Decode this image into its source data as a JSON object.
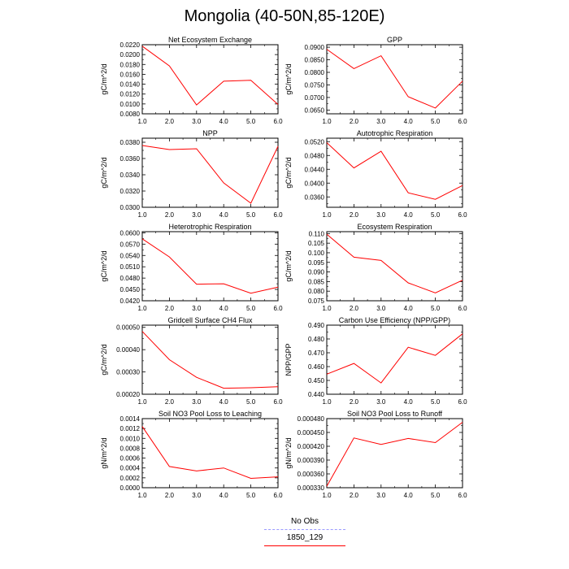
{
  "page": {
    "title": "Mongolia (40-50N,85-120E)"
  },
  "legend": {
    "obs_label": "No Obs",
    "model_label": "1850_129",
    "obs_color": "#9999ff",
    "model_color": "#ff0000"
  },
  "chart_data": [
    {
      "type": "line",
      "title": "Net Ecosystem Exchange",
      "ylabel": "gC/m^2/d",
      "x": [
        1,
        2,
        3,
        4,
        5,
        6
      ],
      "values": [
        0.0217,
        0.0177,
        0.0098,
        0.0146,
        0.0148,
        0.0099
      ],
      "ylim": [
        0.008,
        0.022
      ],
      "yticks": [
        0.008,
        0.01,
        0.012,
        0.014,
        0.016,
        0.018,
        0.02,
        0.022
      ],
      "ydec": 4,
      "xticks": [
        1,
        2,
        3,
        4,
        5,
        6
      ],
      "xlim": [
        1,
        6
      ],
      "color": "#ff0000"
    },
    {
      "type": "line",
      "title": "GPP",
      "ylabel": "gC/m^2/d",
      "x": [
        1,
        2,
        3,
        4,
        5,
        6
      ],
      "values": [
        0.0892,
        0.0815,
        0.0866,
        0.0703,
        0.0658,
        0.0765
      ],
      "ylim": [
        0.0635,
        0.091
      ],
      "yticks": [
        0.065,
        0.07,
        0.075,
        0.08,
        0.085,
        0.09
      ],
      "ydec": 4,
      "xticks": [
        1,
        2,
        3,
        4,
        5,
        6
      ],
      "xlim": [
        1,
        6
      ],
      "color": "#ff0000"
    },
    {
      "type": "line",
      "title": "NPP",
      "ylabel": "gC/m^2/d",
      "x": [
        1,
        2,
        3,
        4,
        5,
        6
      ],
      "values": [
        0.0376,
        0.0371,
        0.0372,
        0.033,
        0.0305,
        0.0375
      ],
      "ylim": [
        0.03,
        0.0385
      ],
      "yticks": [
        0.03,
        0.032,
        0.034,
        0.036,
        0.038
      ],
      "ydec": 4,
      "xticks": [
        1,
        2,
        3,
        4,
        5,
        6
      ],
      "xlim": [
        1,
        6
      ],
      "color": "#ff0000"
    },
    {
      "type": "line",
      "title": "Autotrophic Respiration",
      "ylabel": "gC/m^2/d",
      "x": [
        1,
        2,
        3,
        4,
        5,
        6
      ],
      "values": [
        0.0517,
        0.0444,
        0.0492,
        0.0372,
        0.0353,
        0.0393
      ],
      "ylim": [
        0.033,
        0.053
      ],
      "yticks": [
        0.036,
        0.04,
        0.044,
        0.048,
        0.052
      ],
      "ydec": 4,
      "xticks": [
        1,
        2,
        3,
        4,
        5,
        6
      ],
      "xlim": [
        1,
        6
      ],
      "color": "#ff0000"
    },
    {
      "type": "line",
      "title": "Heterotrophic Respiration",
      "ylabel": "gC/m^2/d",
      "x": [
        1,
        2,
        3,
        4,
        5,
        6
      ],
      "values": [
        0.0584,
        0.0536,
        0.0464,
        0.0465,
        0.044,
        0.0456
      ],
      "ylim": [
        0.042,
        0.0603
      ],
      "yticks": [
        0.042,
        0.045,
        0.048,
        0.051,
        0.054,
        0.057,
        0.06
      ],
      "ydec": 4,
      "xticks": [
        1,
        2,
        3,
        4,
        5,
        6
      ],
      "xlim": [
        1,
        6
      ],
      "color": "#ff0000"
    },
    {
      "type": "line",
      "title": "Ecosystem Respiration",
      "ylabel": "gC/m^2/d",
      "x": [
        1,
        2,
        3,
        4,
        5,
        6
      ],
      "values": [
        0.1097,
        0.0977,
        0.096,
        0.0843,
        0.0791,
        0.0857
      ],
      "ylim": [
        0.075,
        0.111
      ],
      "yticks": [
        0.075,
        0.08,
        0.085,
        0.09,
        0.095,
        0.1,
        0.105,
        0.11
      ],
      "ydec": 3,
      "xticks": [
        1,
        2,
        3,
        4,
        5,
        6
      ],
      "xlim": [
        1,
        6
      ],
      "color": "#ff0000"
    },
    {
      "type": "line",
      "title": "Gridcell Surface CH4 Flux",
      "ylabel": "gC/m^2/d",
      "x": [
        1,
        2,
        3,
        4,
        5,
        6
      ],
      "values": [
        0.000482,
        0.000355,
        0.000276,
        0.000227,
        0.000229,
        0.000234
      ],
      "ylim": [
        0.0002,
        0.00051
      ],
      "yticks": [
        0.0002,
        0.0003,
        0.0004,
        0.0005
      ],
      "ydec": 5,
      "xticks": [
        1,
        2,
        3,
        4,
        5,
        6
      ],
      "xlim": [
        1,
        6
      ],
      "color": "#ff0000"
    },
    {
      "type": "line",
      "title": "Carbon Use Efficiency (NPP/GPP)",
      "ylabel": "NPP/GPP",
      "x": [
        1,
        2,
        3,
        4,
        5,
        6
      ],
      "values": [
        0.4545,
        0.4623,
        0.4482,
        0.474,
        0.4681,
        0.4837
      ],
      "ylim": [
        0.44,
        0.49
      ],
      "yticks": [
        0.44,
        0.45,
        0.46,
        0.47,
        0.48,
        0.49
      ],
      "ydec": 3,
      "xticks": [
        1,
        2,
        3,
        4,
        5,
        6
      ],
      "xlim": [
        1,
        6
      ],
      "color": "#ff0000"
    },
    {
      "type": "line",
      "title": "Soil NO3 Pool Loss to Leaching",
      "ylabel": "gN/m^2/d",
      "x": [
        1,
        2,
        3,
        4,
        5,
        6
      ],
      "values": [
        0.00124,
        0.00043,
        0.00034,
        0.0004,
        0.00019,
        0.00022
      ],
      "ylim": [
        0,
        0.0014
      ],
      "yticks": [
        0.0,
        0.0002,
        0.0004,
        0.0006,
        0.0008,
        0.001,
        0.0012,
        0.0014
      ],
      "ydec": 4,
      "xticks": [
        1,
        2,
        3,
        4,
        5,
        6
      ],
      "xlim": [
        1,
        6
      ],
      "color": "#ff0000"
    },
    {
      "type": "line",
      "title": "Soil NO3 Pool Loss to Runoff",
      "ylabel": "gN/m^2/d",
      "x": [
        1,
        2,
        3,
        4,
        5,
        6
      ],
      "values": [
        0.000333,
        0.000438,
        0.000424,
        0.000437,
        0.000428,
        0.000472
      ],
      "ylim": [
        0.00033,
        0.00048
      ],
      "yticks": [
        0.00033,
        0.00036,
        0.00039,
        0.00042,
        0.00045,
        0.00048
      ],
      "ydec": 6,
      "xticks": [
        1,
        2,
        3,
        4,
        5,
        6
      ],
      "xlim": [
        1,
        6
      ],
      "color": "#ff0000"
    }
  ]
}
